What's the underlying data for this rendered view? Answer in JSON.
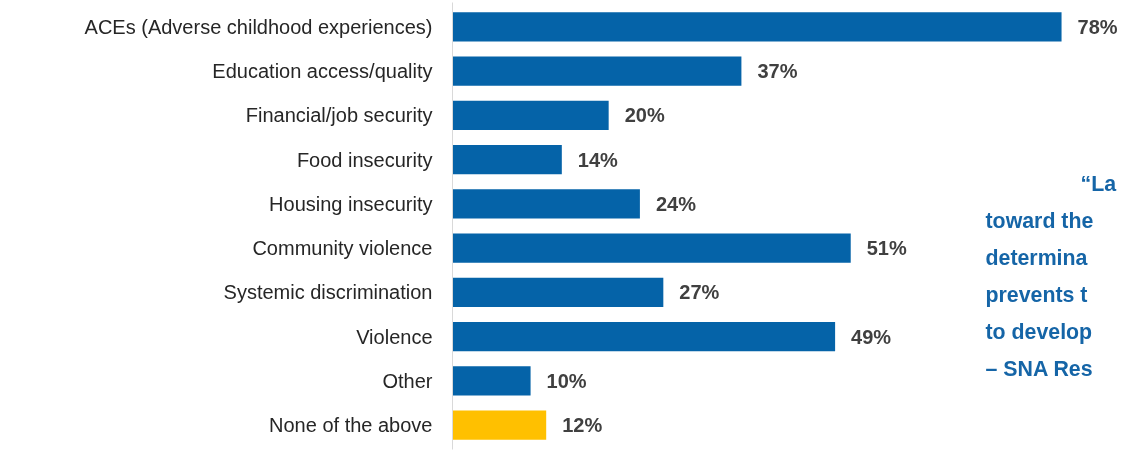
{
  "chart_data": {
    "type": "bar",
    "orientation": "horizontal",
    "data_labels": true,
    "categories": [
      "ACEs (Adverse childhood experiences)",
      "Education access/quality",
      "Financial/job security",
      "Food insecurity",
      "Housing insecurity",
      "Community violence",
      "Systemic discrimination",
      "Violence",
      "Other",
      "None of the above"
    ],
    "values": [
      78,
      37,
      20,
      14,
      24,
      51,
      27,
      49,
      10,
      12
    ],
    "value_labels": [
      "78%",
      "37%",
      "20%",
      "14%",
      "24%",
      "51%",
      "27%",
      "49%",
      "10%",
      "12%"
    ],
    "colors": [
      "#0563a8",
      "#0563a8",
      "#0563a8",
      "#0563a8",
      "#0563a8",
      "#0563a8",
      "#0563a8",
      "#0563a8",
      "#0563a8",
      "#ffc000"
    ],
    "annotations": [
      "“La",
      "toward the",
      "determina",
      "prevents t",
      "to develop",
      "– SNA Res"
    ]
  }
}
